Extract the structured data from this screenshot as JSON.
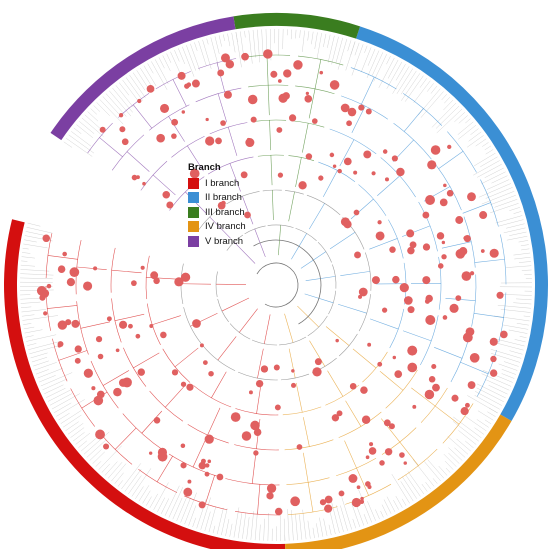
{
  "legend": {
    "title": "Branch",
    "items": [
      {
        "label": "I branch",
        "color": "#d40f0f"
      },
      {
        "label": "II branch",
        "color": "#3b8fd4"
      },
      {
        "label": "III branch",
        "color": "#3a7d1f"
      },
      {
        "label": "IV branch",
        "color": "#e39414"
      },
      {
        "label": "V branch",
        "color": "#7b3fa2"
      }
    ]
  },
  "colors": {
    "node": "#e06060",
    "leaf_line": "#c8c8c8",
    "internal_line": "#777777"
  }
}
